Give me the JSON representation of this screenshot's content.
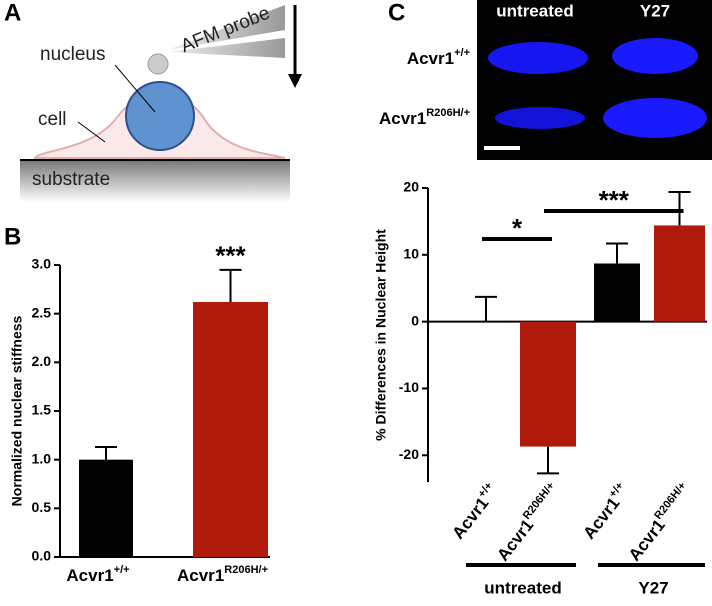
{
  "panels": {
    "a": "A",
    "b": "B",
    "c": "C"
  },
  "diagram": {
    "probe": "AFM probe",
    "nucleus": "nucleus",
    "cell": "cell",
    "substrate": "substrate"
  },
  "micrograph": {
    "columns": [
      "untreated",
      "Y27"
    ],
    "rows": [
      "Acvr1",
      "Acvr1"
    ],
    "row_superscripts": [
      "+/+",
      "R206H/+"
    ]
  },
  "chart_data": [
    {
      "type": "bar",
      "ylabel": "Normalized nuclear stiffness",
      "categories": [
        "Acvr1",
        "Acvr1"
      ],
      "category_superscripts": [
        "+/+",
        "R206H/+"
      ],
      "values": [
        1.0,
        2.62
      ],
      "errors": [
        0.13,
        0.33
      ],
      "colors": [
        "#000000",
        "#b01a0a"
      ],
      "ylim": [
        0,
        3.0
      ],
      "yticks": [
        {
          "value": 0,
          "label": "0.0"
        },
        {
          "value": 0.5,
          "label": "0.5"
        },
        {
          "value": 1,
          "label": "1.0"
        },
        {
          "value": 1.5,
          "label": "1.5"
        },
        {
          "value": 2,
          "label": "2.0"
        },
        {
          "value": 2.5,
          "label": "2.5"
        },
        {
          "value": 3,
          "label": "3.0"
        }
      ],
      "annotations": [
        {
          "bar": 1,
          "text": "***"
        }
      ]
    },
    {
      "type": "bar",
      "ylabel": "% Differences in Nuclear Height",
      "categories": [
        "Acvr1",
        "Acvr1",
        "Acvr1",
        "Acvr1"
      ],
      "category_superscripts": [
        "+/+",
        "R206H/+",
        "+/+",
        "R206H/+"
      ],
      "values": [
        0,
        -18.7,
        8.7,
        14.4
      ],
      "errors": [
        3.7,
        4.0,
        3.0,
        5.0
      ],
      "colors": [
        "#000000",
        "#b01a0a",
        "#000000",
        "#b01a0a"
      ],
      "ylim": [
        -24,
        20
      ],
      "yticks": [
        -20,
        -10,
        0,
        10,
        20
      ],
      "groups": [
        {
          "name": "untreated",
          "from": 0,
          "to": 1
        },
        {
          "name": "Y27",
          "from": 2,
          "to": 3
        }
      ],
      "significance": [
        {
          "from": 0,
          "to": 1,
          "text": "*"
        },
        {
          "from": 1,
          "to": 3,
          "text": "***"
        }
      ]
    }
  ]
}
